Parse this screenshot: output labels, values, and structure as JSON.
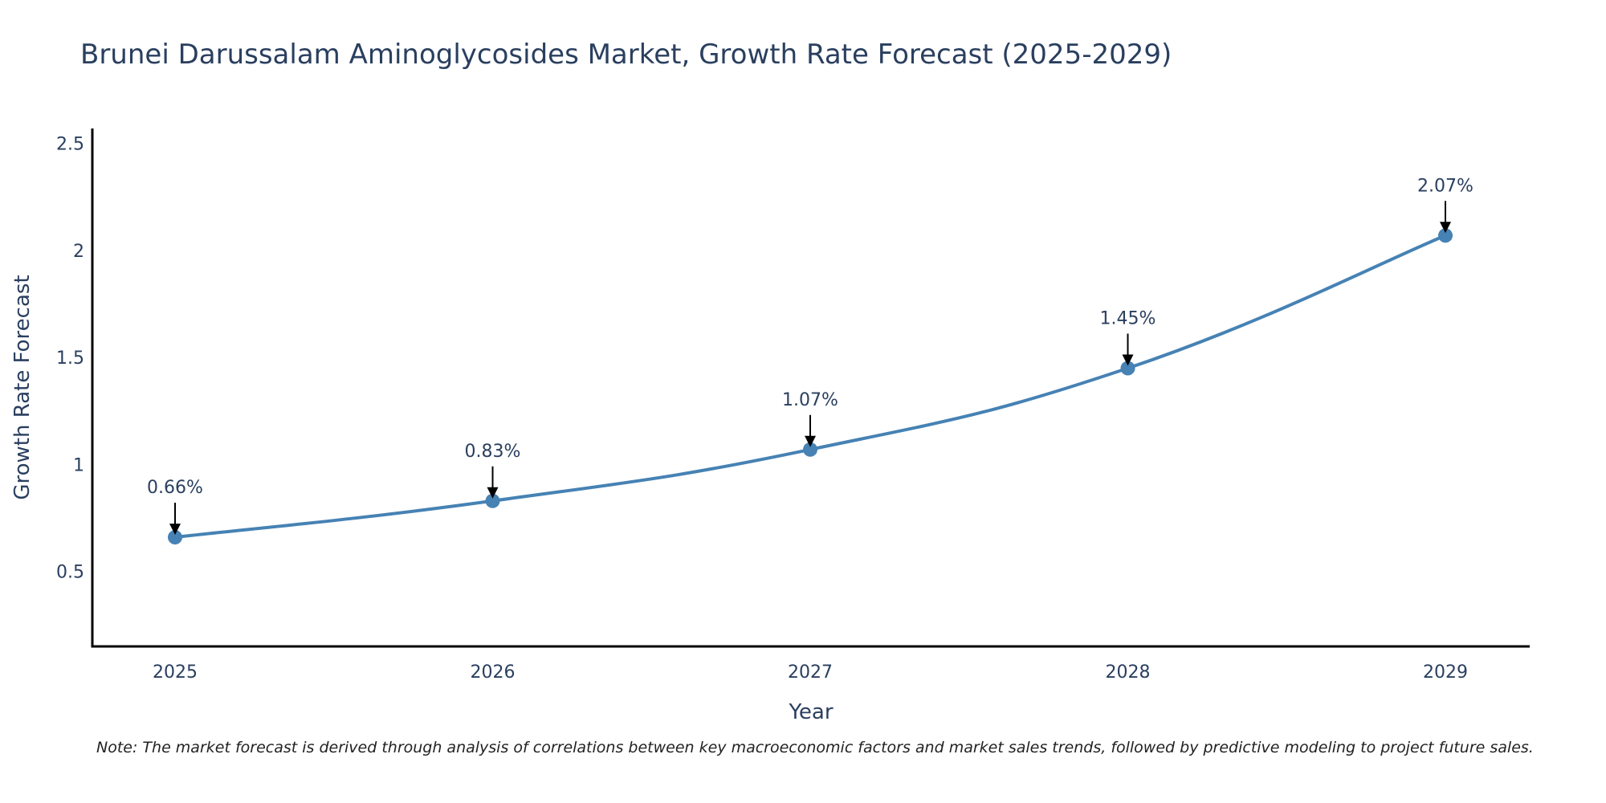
{
  "chart_data": {
    "type": "line",
    "title": "Brunei Darussalam Aminoglycosides Market, Growth Rate Forecast (2025-2029)",
    "xlabel": "Year",
    "ylabel": "Growth Rate Forecast",
    "categories": [
      "2025",
      "2026",
      "2027",
      "2028",
      "2029"
    ],
    "values": [
      0.66,
      0.83,
      1.07,
      1.45,
      2.07
    ],
    "data_labels": [
      "0.66%",
      "0.83%",
      "1.07%",
      "1.45%",
      "2.07%"
    ],
    "ylim": [
      0.15,
      2.57
    ],
    "yticks": [
      0.5,
      1,
      1.5,
      2,
      2.5
    ],
    "ytick_labels": [
      "0.5",
      "1",
      "1.5",
      "2",
      "2.5"
    ],
    "grid": false,
    "line_color": "#4682b4",
    "marker_color": "#4682b4",
    "note": "Note: The market forecast is derived through analysis of correlations between key macroeconomic factors and market sales trends, followed by predictive modeling to project future sales."
  }
}
